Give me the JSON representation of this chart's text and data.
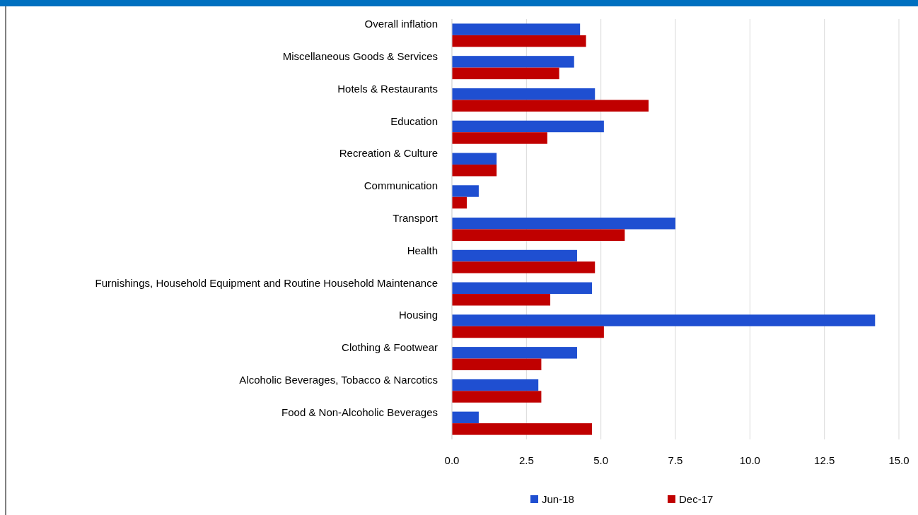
{
  "chart_data": {
    "type": "bar",
    "orientation": "horizontal",
    "categories": [
      "Overall inflation",
      "Miscellaneous Goods & Services",
      "Hotels & Restaurants",
      "Education",
      "Recreation & Culture",
      "Communication",
      "Transport",
      "Health",
      "Furnishings, Household Equipment and Routine Household Maintenance",
      "Housing",
      "Clothing & Footwear",
      "Alcoholic Beverages, Tobacco & Narcotics",
      "Food & Non-Alcoholic Beverages"
    ],
    "series": [
      {
        "name": "Jun-18",
        "color": "#1f4fd1",
        "values": [
          4.3,
          4.1,
          4.8,
          5.1,
          1.5,
          0.9,
          7.5,
          4.2,
          4.7,
          14.2,
          4.2,
          2.9,
          0.9
        ]
      },
      {
        "name": "Dec-17",
        "color": "#c00000",
        "values": [
          4.5,
          3.6,
          6.6,
          3.2,
          1.5,
          0.5,
          5.8,
          4.8,
          3.3,
          5.1,
          3.0,
          3.0,
          4.7
        ]
      }
    ],
    "xlim": [
      0,
      15
    ],
    "xticks": [
      {
        "value": 0,
        "label": "0.0"
      },
      {
        "value": 2.5,
        "label": "2.5"
      },
      {
        "value": 5,
        "label": "5.0"
      },
      {
        "value": 7.5,
        "label": "7.5"
      },
      {
        "value": 10,
        "label": "10.0"
      },
      {
        "value": 12.5,
        "label": "12.5"
      },
      {
        "value": 15,
        "label": "15.0"
      }
    ],
    "grid": "x",
    "legend": "bottom"
  }
}
